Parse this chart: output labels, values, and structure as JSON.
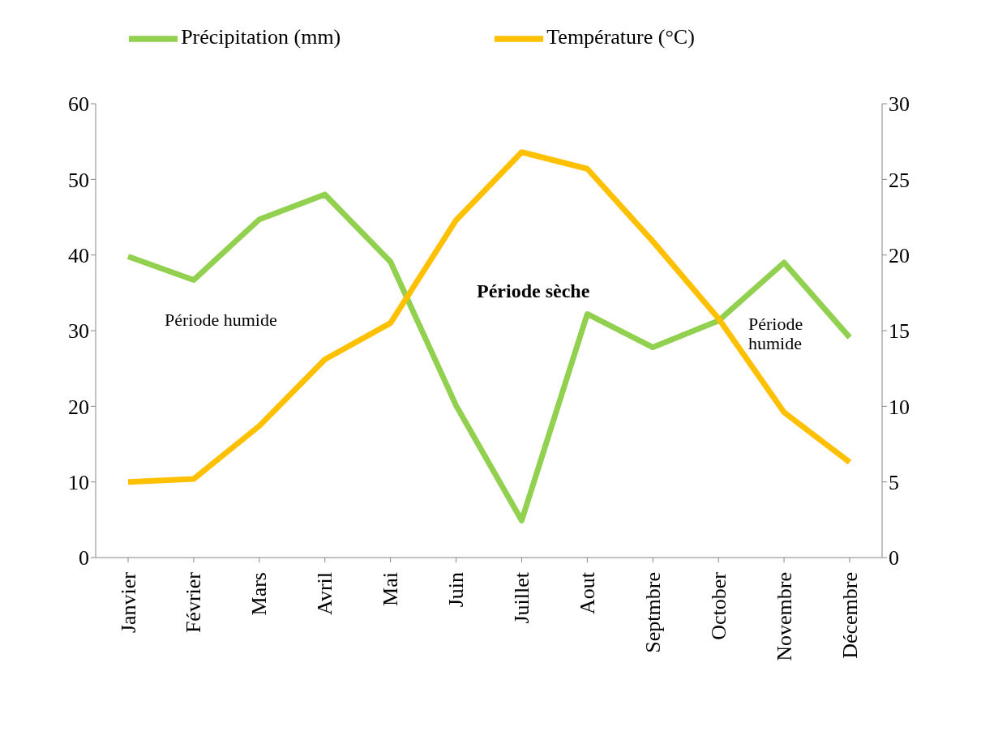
{
  "chart_data": {
    "type": "line",
    "categories": [
      "Janvier",
      "Février",
      "Mars",
      "Avril",
      "Mai",
      "Juin",
      "Juillet",
      "Aout",
      "Septmbre",
      "October",
      "Novembre",
      "Décembre"
    ],
    "series": [
      {
        "name": "Précipitation (mm)",
        "color": "#92d050",
        "values": [
          39.8,
          36.7,
          44.7,
          48,
          39.1,
          20.1,
          4.9,
          32.2,
          27.8,
          31.3,
          39,
          29.1
        ]
      },
      {
        "name": "Température (°C)",
        "color": "#ffc000",
        "axis": "y2",
        "values": [
          5,
          5.2,
          8.7,
          13.1,
          15.5,
          22.3,
          26.8,
          25.7,
          20.9,
          15.8,
          9.6,
          6.3
        ]
      }
    ],
    "ylim": [
      0,
      60
    ],
    "yticks": [
      0,
      10,
      20,
      30,
      40,
      50,
      60
    ],
    "y2lim": [
      0,
      30
    ],
    "y2ticks": [
      0,
      5,
      10,
      15,
      20,
      25,
      30
    ],
    "grid": false,
    "legend": "top",
    "marker": "none",
    "line_style": "solid",
    "annotations": [
      "Période humide",
      "Période sèche",
      "Période humide"
    ]
  }
}
